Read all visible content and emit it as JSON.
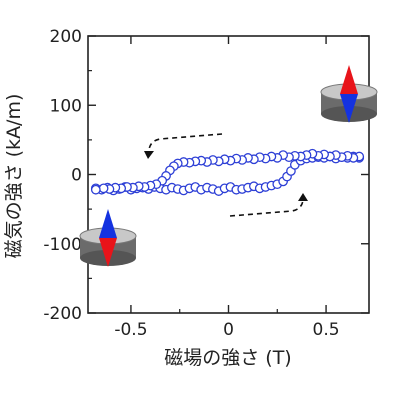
{
  "chart_data": {
    "type": "scatter",
    "xlabel": "磁場の強さ (T)",
    "ylabel": "磁気の強さ (kA/m)",
    "xlim": [
      -0.72,
      0.72
    ],
    "ylim": [
      -200,
      200
    ],
    "x_ticks": [
      -0.5,
      0,
      0.5
    ],
    "x_tick_labels": [
      "-0.5",
      "0",
      "0.5"
    ],
    "y_ticks": [
      -200,
      -100,
      0,
      100,
      200
    ],
    "y_tick_labels": [
      "-200",
      "-100",
      "0",
      "100",
      "200"
    ],
    "grid": false,
    "marker": "open-circle",
    "series": [
      {
        "values_x": [
          -0.68,
          -0.65,
          -0.62,
          -0.59,
          -0.56,
          -0.53,
          -0.5,
          -0.47,
          -0.44,
          -0.41,
          -0.38,
          -0.35,
          -0.32,
          -0.29,
          -0.26,
          -0.23,
          -0.2,
          -0.17,
          -0.14,
          -0.11,
          -0.08,
          -0.05,
          -0.02,
          0.01,
          0.04,
          0.07,
          0.1,
          0.13,
          0.16,
          0.19,
          0.22,
          0.25,
          0.28,
          0.3,
          0.32,
          0.34,
          0.37,
          0.4,
          0.43,
          0.46,
          0.49,
          0.52,
          0.55,
          0.58,
          0.61,
          0.64,
          0.67
        ],
        "values_y": [
          -20,
          -22,
          -19,
          -23,
          -21,
          -18,
          -22,
          -20,
          -19,
          -21,
          -18,
          -20,
          -22,
          -19,
          -21,
          -23,
          -20,
          -18,
          -22,
          -19,
          -21,
          -24,
          -20,
          -18,
          -22,
          -21,
          -19,
          -17,
          -20,
          -18,
          -16,
          -14,
          -10,
          -3,
          5,
          14,
          20,
          23,
          24,
          25,
          24,
          26,
          23,
          25,
          24,
          26,
          24
        ]
      },
      {
        "values_x": [
          0.67,
          0.64,
          0.61,
          0.58,
          0.55,
          0.52,
          0.49,
          0.46,
          0.43,
          0.4,
          0.37,
          0.34,
          0.31,
          0.28,
          0.25,
          0.22,
          0.19,
          0.16,
          0.13,
          0.1,
          0.07,
          0.04,
          0.01,
          -0.02,
          -0.05,
          -0.08,
          -0.11,
          -0.14,
          -0.17,
          -0.2,
          -0.23,
          -0.26,
          -0.28,
          -0.3,
          -0.32,
          -0.34,
          -0.37,
          -0.4,
          -0.43,
          -0.46,
          -0.49,
          -0.52,
          -0.55,
          -0.58,
          -0.61,
          -0.64,
          -0.68
        ],
        "values_y": [
          26,
          24,
          27,
          25,
          28,
          26,
          29,
          27,
          30,
          28,
          26,
          27,
          25,
          28,
          24,
          26,
          23,
          25,
          22,
          24,
          21,
          23,
          20,
          22,
          19,
          21,
          18,
          20,
          19,
          17,
          18,
          16,
          12,
          6,
          -2,
          -9,
          -14,
          -16,
          -18,
          -17,
          -19,
          -18,
          -20,
          -19,
          -21,
          -20,
          -22
        ]
      }
    ],
    "colors": {
      "marker": "#2d3fd6",
      "axis": "#222222"
    },
    "insets": [
      {
        "position": "top-right",
        "top_color": "#e8141a",
        "bottom_color": "#1432e0",
        "body_color": "#6b6b6b"
      },
      {
        "position": "bottom-left",
        "top_color": "#1432e0",
        "bottom_color": "#e8141a",
        "body_color": "#6b6b6b"
      }
    ]
  }
}
